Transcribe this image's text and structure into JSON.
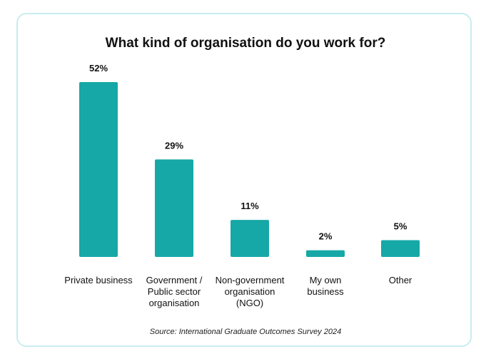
{
  "chart_data": {
    "type": "bar",
    "title": "What kind of organisation do you work for?",
    "categories": [
      [
        "Private business"
      ],
      [
        "Government /",
        "Public sector",
        "organisation"
      ],
      [
        "Non-government",
        "organisation",
        "(NGO)"
      ],
      [
        "My own",
        "business"
      ],
      [
        "Other"
      ]
    ],
    "values": [
      52,
      29,
      11,
      2,
      5
    ],
    "value_labels": [
      "52%",
      "29%",
      "11%",
      "2%",
      "5%"
    ],
    "unit": "%",
    "ylim": [
      0,
      52
    ],
    "grid": false,
    "legend": "none",
    "bar_color": "#16a8a6",
    "source": "Source: International Graduate Outcomes Survey 2024"
  },
  "colors": {
    "card_border": "#c9ecf1",
    "bar": "#16a8a6",
    "text": "#111111"
  }
}
